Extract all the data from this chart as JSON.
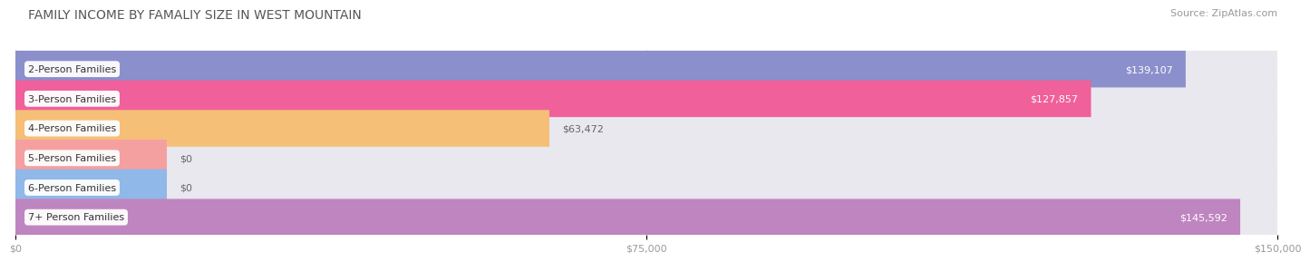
{
  "title": "FAMILY INCOME BY FAMALIY SIZE IN WEST MOUNTAIN",
  "source": "Source: ZipAtlas.com",
  "categories": [
    "2-Person Families",
    "3-Person Families",
    "4-Person Families",
    "5-Person Families",
    "6-Person Families",
    "7+ Person Families"
  ],
  "values": [
    139107,
    127857,
    63472,
    0,
    0,
    145592
  ],
  "bar_colors": [
    "#8b8fcc",
    "#f0609a",
    "#f5bf78",
    "#f5a0a0",
    "#90b8e8",
    "#bf85c0"
  ],
  "label_inside": [
    true,
    true,
    false,
    false,
    false,
    true
  ],
  "xlim": [
    0,
    150000
  ],
  "xticks": [
    0,
    75000,
    150000
  ],
  "xtick_labels": [
    "$0",
    "$75,000",
    "$150,000"
  ],
  "background_color": "#ffffff",
  "bar_bg_color": "#e8e8ee",
  "title_fontsize": 10,
  "source_fontsize": 8,
  "value_labels": [
    "$139,107",
    "$127,857",
    "$63,472",
    "$0",
    "$0",
    "$145,592"
  ],
  "label_text_color_inside": "white",
  "label_text_color_outside": "#666666"
}
